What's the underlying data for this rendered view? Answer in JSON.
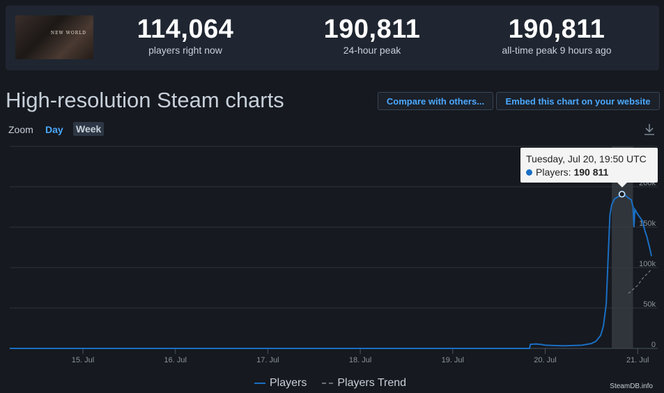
{
  "stats": {
    "now": {
      "value": "114,064",
      "label": "players right now"
    },
    "peak24": {
      "value": "190,811",
      "label": "24-hour peak"
    },
    "alltime": {
      "value": "190,811",
      "label": "all-time peak 9 hours ago"
    }
  },
  "game_logo_text": "NEW WORLD",
  "page_title": "High-resolution Steam charts",
  "buttons": {
    "compare": "Compare with others...",
    "embed": "Embed this chart on your website"
  },
  "zoom": {
    "label": "Zoom",
    "options": [
      "Day",
      "Week"
    ],
    "selected": "Week"
  },
  "icons": {
    "download": "download-icon"
  },
  "tooltip": {
    "date": "Tuesday, Jul 20, 19:50 UTC",
    "series_label": "Players:",
    "value": "190 811"
  },
  "legend": {
    "players": "Players",
    "trend": "Players Trend"
  },
  "credit": "SteamDB.info",
  "colors": {
    "accent": "#4aa8ff",
    "series": "#1a6fc4",
    "background": "#16191f",
    "panel": "#1f2631"
  },
  "chart_data": {
    "type": "line",
    "x_ticks": [
      "15. Jul",
      "16. Jul",
      "17. Jul",
      "18. Jul",
      "19. Jul",
      "20. Jul",
      "21. Jul"
    ],
    "y_ticks": [
      "0",
      "50k",
      "100k",
      "150k",
      "200k"
    ],
    "ylim": [
      0,
      250000
    ],
    "grid": true,
    "legend_position": "bottom-center",
    "series": [
      {
        "name": "Players",
        "points": [
          [
            19.83,
            0
          ],
          [
            19.84,
            5000
          ],
          [
            19.9,
            5500
          ],
          [
            19.95,
            5000
          ],
          [
            20.0,
            4000
          ],
          [
            20.1,
            3500
          ],
          [
            20.2,
            3200
          ],
          [
            20.3,
            3500
          ],
          [
            20.4,
            4000
          ],
          [
            20.5,
            6000
          ],
          [
            20.55,
            9000
          ],
          [
            20.6,
            16000
          ],
          [
            20.63,
            28000
          ],
          [
            20.66,
            55000
          ],
          [
            20.68,
            110000
          ],
          [
            20.7,
            165000
          ],
          [
            20.72,
            178000
          ],
          [
            20.75,
            185000
          ],
          [
            20.8,
            188500
          ],
          [
            20.83,
            190811
          ],
          [
            20.87,
            189000
          ],
          [
            20.9,
            186000
          ],
          [
            20.93,
            184000
          ],
          [
            20.95,
            175000
          ],
          [
            20.96,
            150000
          ],
          [
            20.97,
            172000
          ],
          [
            21.0,
            166000
          ],
          [
            21.05,
            158000
          ],
          [
            21.08,
            145000
          ],
          [
            21.1,
            138000
          ],
          [
            21.13,
            124000
          ],
          [
            21.15,
            114064
          ]
        ]
      },
      {
        "name": "Players Trend",
        "points": [
          [
            20.9,
            68000
          ],
          [
            21.0,
            78000
          ],
          [
            21.05,
            86000
          ],
          [
            21.1,
            92000
          ],
          [
            21.15,
            98000
          ]
        ]
      }
    ],
    "highlight": {
      "x": 20.83,
      "y": 190811,
      "band": [
        20.72,
        20.95
      ]
    }
  }
}
